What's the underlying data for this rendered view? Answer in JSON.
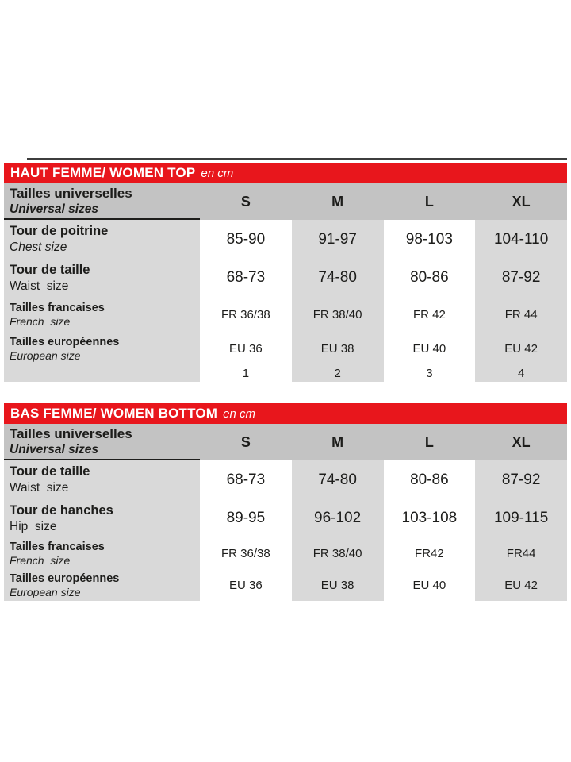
{
  "colors": {
    "accent_red": "#e8161c",
    "header_gray": "#c3c3c3",
    "cell_gray": "#d9d9d9",
    "text": "#1d1d1b"
  },
  "tables": [
    {
      "title": "HAUT FEMME/ WOMEN TOP",
      "unit": "en cm",
      "header": {
        "label_fr": "Tailles universelles",
        "label_en": "Universal sizes",
        "sizes": [
          "S",
          "M",
          "L",
          "XL"
        ]
      },
      "rows": [
        {
          "label_fr": "Tour de poitrine",
          "label_en": "Chest size",
          "values": [
            "85-90",
            "91-97",
            "98-103",
            "104-110"
          ]
        },
        {
          "label_fr": "Tour de taille",
          "label_en": "Waist  size",
          "values": [
            "68-73",
            "74-80",
            "80-86",
            "87-92"
          ]
        },
        {
          "label_fr": "Tailles francaises",
          "label_en": "French  size",
          "values": [
            "FR 36/38",
            "FR 38/40",
            "FR 42",
            "FR 44"
          ]
        },
        {
          "label_fr": "Tailles européennes",
          "label_en": "European size",
          "values": [
            "EU 36",
            "EU 38",
            "EU 40",
            "EU 42"
          ]
        },
        {
          "label_fr": "",
          "label_en": "",
          "values": [
            "1",
            "2",
            "3",
            "4"
          ]
        }
      ]
    },
    {
      "title": "BAS FEMME/ WOMEN BOTTOM",
      "unit": "en cm",
      "header": {
        "label_fr": "Tailles universelles",
        "label_en": "Universal sizes",
        "sizes": [
          "S",
          "M",
          "L",
          "XL"
        ]
      },
      "rows": [
        {
          "label_fr": "Tour de taille",
          "label_en": "Waist  size",
          "values": [
            "68-73",
            "74-80",
            "80-86",
            "87-92"
          ]
        },
        {
          "label_fr": "Tour de hanches",
          "label_en": "Hip  size",
          "values": [
            "89-95",
            "96-102",
            "103-108",
            "109-115"
          ]
        },
        {
          "label_fr": "Tailles francaises",
          "label_en": "French  size",
          "values": [
            "FR 36/38",
            "FR 38/40",
            "FR42",
            "FR44"
          ]
        },
        {
          "label_fr": "Tailles européennes",
          "label_en": "European size",
          "values": [
            "EU 36",
            "EU 38",
            "EU 40",
            "EU 42"
          ]
        }
      ]
    }
  ]
}
